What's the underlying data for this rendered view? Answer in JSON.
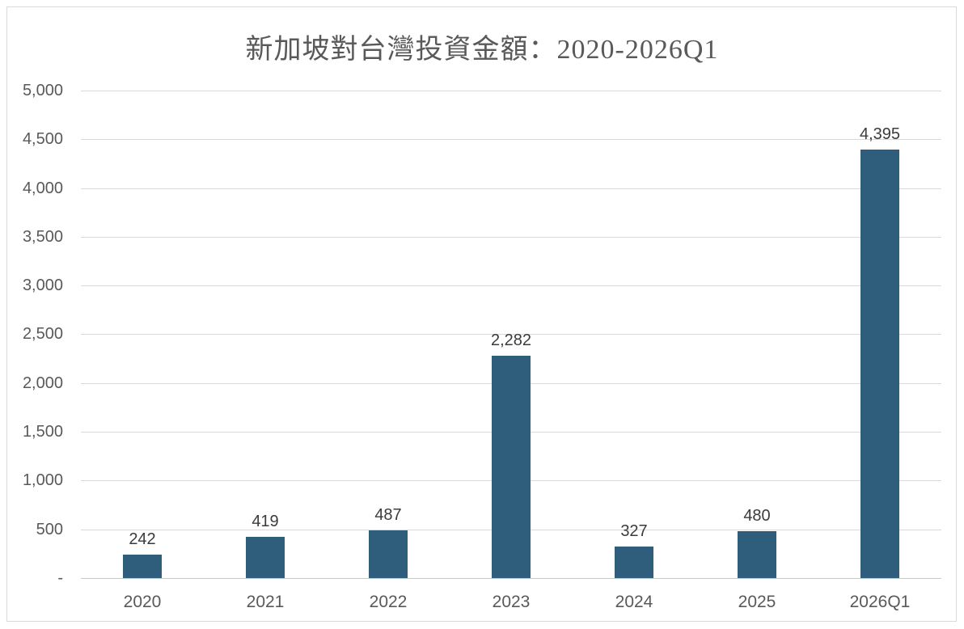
{
  "chart_data": {
    "type": "bar",
    "title": "新加坡對台灣投資金額：2020-2026Q1",
    "categories": [
      "2020",
      "2021",
      "2022",
      "2023",
      "2024",
      "2025",
      "2026Q1"
    ],
    "values": [
      242,
      419,
      487,
      2282,
      327,
      480,
      4395
    ],
    "data_labels": [
      "242",
      "419",
      "487",
      "2,282",
      "327",
      "480",
      "4,395"
    ],
    "xlabel": "",
    "ylabel": "",
    "ylim": [
      0,
      5000
    ],
    "y_tick_step": 500,
    "y_ticks": [
      {
        "value": 0,
        "label": "-"
      },
      {
        "value": 500,
        "label": "500"
      },
      {
        "value": 1000,
        "label": "1,000"
      },
      {
        "value": 1500,
        "label": "1,500"
      },
      {
        "value": 2000,
        "label": "2,000"
      },
      {
        "value": 2500,
        "label": "2,500"
      },
      {
        "value": 3000,
        "label": "3,000"
      },
      {
        "value": 3500,
        "label": "3,500"
      },
      {
        "value": 4000,
        "label": "4,000"
      },
      {
        "value": 4500,
        "label": "4,500"
      },
      {
        "value": 5000,
        "label": "5,000"
      }
    ],
    "grid": true,
    "legend": false
  },
  "colors": {
    "bar": "#2E5E7C",
    "gridline": "#D9D9D9",
    "axis_line": "#C8C8C8",
    "chart_border": "#D9D9D9",
    "title_text": "#595959",
    "tick_text": "#595959",
    "data_label_text": "#3B3B3B",
    "background": "#FFFFFF"
  }
}
